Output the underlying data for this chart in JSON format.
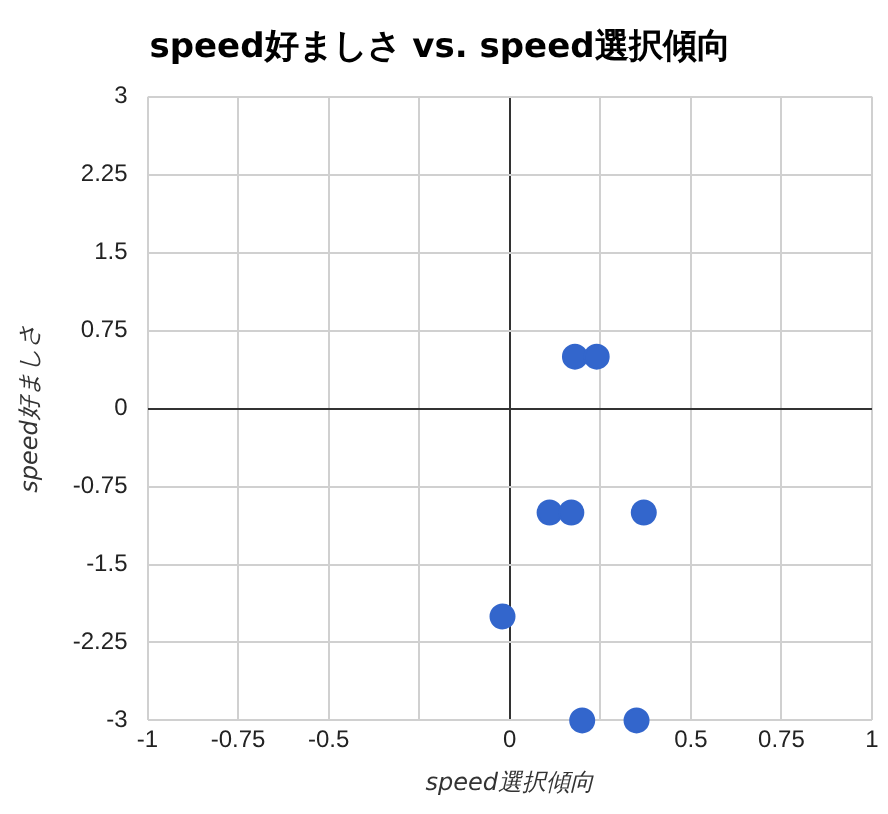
{
  "chart_data": {
    "type": "scatter",
    "title": "speed好ましさ vs. speed選択傾向",
    "xlabel": "speed選択傾向",
    "ylabel": "speed好ましさ",
    "x": [
      0.18,
      0.24,
      0.11,
      0.17,
      0.37,
      -0.02,
      0.2,
      0.35
    ],
    "series": [
      {
        "color": "#3366cc",
        "values": [
          0.5,
          0.5,
          -1,
          -1,
          -1,
          -2,
          -3,
          -3
        ]
      }
    ],
    "xlim": [
      -1,
      1
    ],
    "ylim": [
      -3,
      3
    ],
    "xticks": [
      -1,
      -0.75,
      -0.5,
      {
        "value": -0.25,
        "label": null
      },
      0,
      {
        "value": 0.25,
        "label": null
      },
      0.5,
      0.75,
      1
    ],
    "yticks": [
      -3,
      -2.25,
      -1.5,
      -0.75,
      0,
      0.75,
      1.5,
      2.25,
      3
    ],
    "grid": true,
    "marker": "circle",
    "legend": false
  }
}
